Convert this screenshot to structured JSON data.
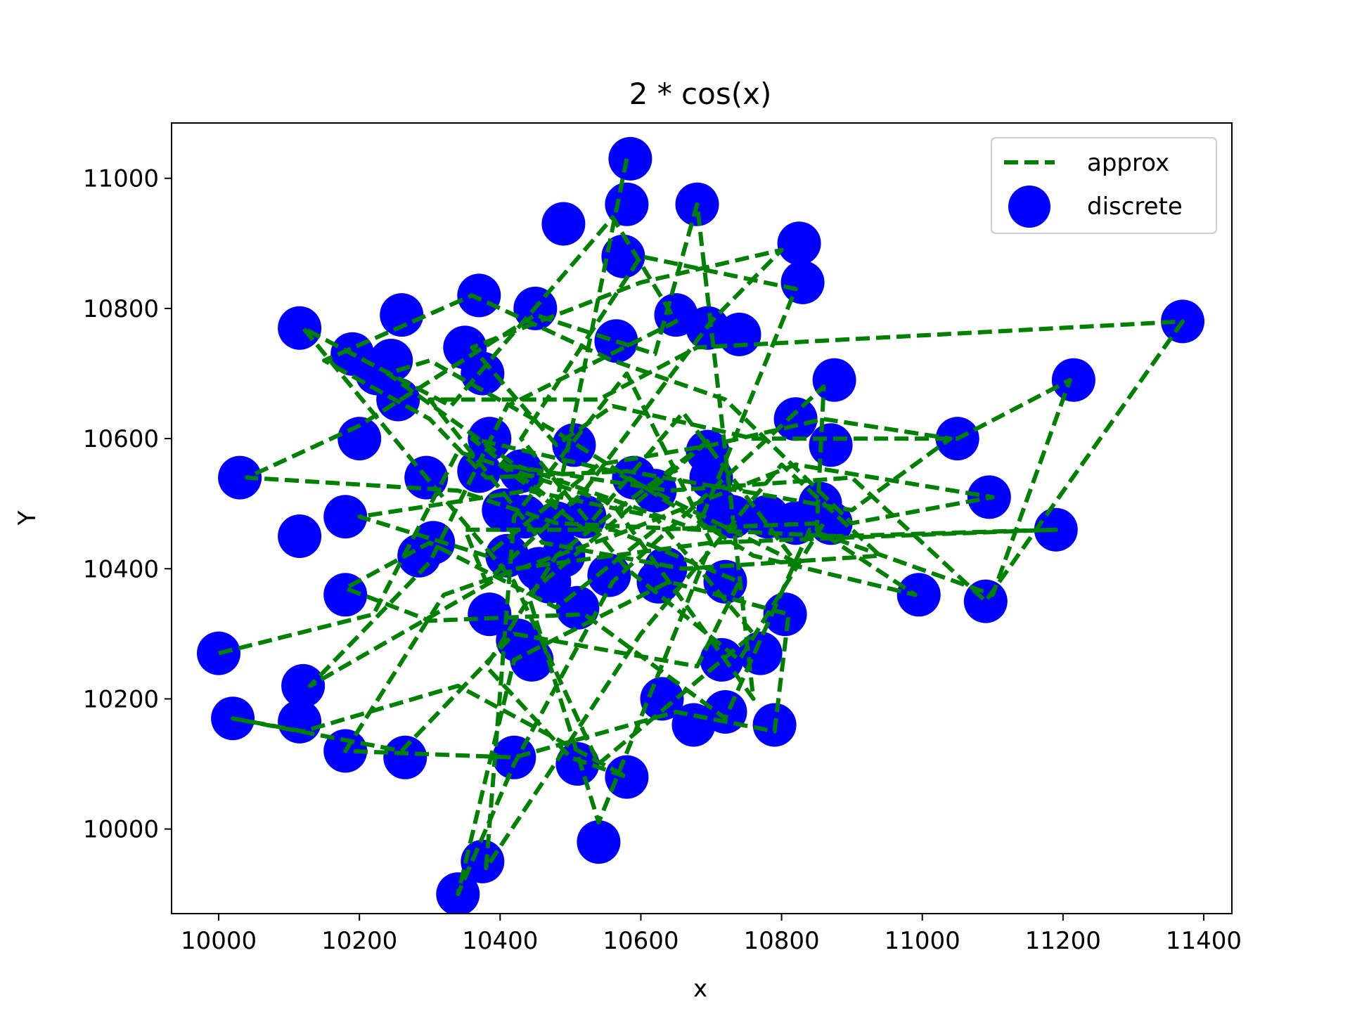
{
  "chart_data": {
    "type": "scatter",
    "title": "2 * cos(x)",
    "xlabel": "x",
    "ylabel": "Y",
    "xlim": [
      9933,
      11440
    ],
    "ylim": [
      9870,
      11085
    ],
    "xticks": [
      10000,
      10200,
      10400,
      10600,
      10800,
      11000,
      11200,
      11400
    ],
    "yticks": [
      10000,
      10200,
      10400,
      10600,
      10800,
      11000
    ],
    "grid": false,
    "legend_position": "top-right",
    "colors": {
      "approx": "#008000",
      "discrete": "#0000ff"
    },
    "series": [
      {
        "name": "approx",
        "style": "dashed-line",
        "points": [
          [
            10000,
            10270
          ],
          [
            10220,
            10330
          ],
          [
            10340,
            10580
          ],
          [
            10560,
            10500
          ],
          [
            10760,
            10200
          ],
          [
            10680,
            10960
          ],
          [
            10620,
            10730
          ],
          [
            10450,
            10790
          ],
          [
            10200,
            10620
          ],
          [
            10040,
            10540
          ],
          [
            10340,
            10520
          ],
          [
            10480,
            10470
          ],
          [
            10880,
            10450
          ],
          [
            11190,
            10460
          ],
          [
            10700,
            10440
          ],
          [
            10420,
            10400
          ],
          [
            10130,
            10220
          ],
          [
            10300,
            10410
          ],
          [
            10410,
            10650
          ],
          [
            10650,
            10780
          ],
          [
            10560,
            10940
          ],
          [
            10330,
            10650
          ],
          [
            10120,
            10770
          ],
          [
            10280,
            10560
          ],
          [
            10420,
            10380
          ],
          [
            10540,
            10100
          ],
          [
            10760,
            10300
          ],
          [
            10620,
            10480
          ],
          [
            10440,
            10520
          ],
          [
            10200,
            10480
          ],
          [
            10380,
            10420
          ],
          [
            10540,
            10560
          ],
          [
            10700,
            10590
          ],
          [
            10860,
            10630
          ],
          [
            11040,
            10600
          ],
          [
            10900,
            10490
          ],
          [
            10580,
            10550
          ],
          [
            10380,
            10540
          ],
          [
            10300,
            10630
          ],
          [
            10150,
            10720
          ],
          [
            10360,
            10820
          ],
          [
            10560,
            10720
          ],
          [
            10720,
            10660
          ],
          [
            10900,
            10470
          ],
          [
            11100,
            10510
          ],
          [
            10820,
            10560
          ],
          [
            10560,
            10450
          ],
          [
            10320,
            10360
          ],
          [
            10180,
            10120
          ],
          [
            10420,
            10110
          ],
          [
            10650,
            10180
          ],
          [
            10790,
            10150
          ],
          [
            10810,
            10330
          ],
          [
            10640,
            10380
          ],
          [
            10420,
            10260
          ],
          [
            10340,
            9900
          ],
          [
            10420,
            10100
          ],
          [
            10560,
            10380
          ],
          [
            10700,
            10520
          ],
          [
            10860,
            10680
          ],
          [
            10850,
            10460
          ],
          [
            10990,
            10360
          ],
          [
            10760,
            10420
          ],
          [
            10480,
            10610
          ],
          [
            10300,
            10720
          ],
          [
            10240,
            10700
          ],
          [
            10420,
            10560
          ],
          [
            10680,
            10460
          ],
          [
            10820,
            10830
          ],
          [
            10600,
            10880
          ],
          [
            10430,
            10600
          ],
          [
            10580,
            10400
          ],
          [
            10740,
            10260
          ],
          [
            10860,
            10470
          ],
          [
            10620,
            10460
          ],
          [
            10480,
            10340
          ],
          [
            10300,
            10440
          ],
          [
            10180,
            10370
          ],
          [
            10300,
            10320
          ],
          [
            10520,
            10330
          ],
          [
            10720,
            10170
          ],
          [
            10840,
            10460
          ],
          [
            11100,
            10360
          ],
          [
            11210,
            10690
          ],
          [
            11050,
            10600
          ],
          [
            10760,
            10600
          ],
          [
            10560,
            10650
          ],
          [
            10480,
            10590
          ],
          [
            10360,
            10740
          ],
          [
            10600,
            10840
          ],
          [
            10800,
            10890
          ],
          [
            10700,
            10780
          ],
          [
            10520,
            10520
          ],
          [
            10380,
            10380
          ],
          [
            10350,
            10460
          ],
          [
            10560,
            10460
          ],
          [
            10740,
            10380
          ],
          [
            10680,
            10250
          ],
          [
            10420,
            10300
          ],
          [
            10260,
            10120
          ],
          [
            10020,
            10170
          ],
          [
            10120,
            10150
          ],
          [
            10340,
            10220
          ],
          [
            10580,
            10080
          ],
          [
            10500,
            10110
          ],
          [
            10380,
            10250
          ],
          [
            10480,
            10420
          ],
          [
            10700,
            10600
          ],
          [
            10440,
            10360
          ],
          [
            10540,
            10010
          ],
          [
            10700,
            10440
          ],
          [
            10580,
            10700
          ],
          [
            10420,
            10480
          ],
          [
            10380,
            9940
          ],
          [
            10600,
            10300
          ],
          [
            10800,
            10560
          ],
          [
            10940,
            10420
          ],
          [
            10660,
            10400
          ],
          [
            10460,
            10440
          ],
          [
            10300,
            10660
          ],
          [
            10540,
            10660
          ],
          [
            10680,
            10740
          ],
          [
            11370,
            10780
          ],
          [
            11090,
            10350
          ],
          [
            10900,
            10540
          ],
          [
            10640,
            10520
          ],
          [
            10400,
            10560
          ],
          [
            10520,
            10460
          ],
          [
            10660,
            10640
          ],
          [
            10820,
            10410
          ],
          [
            10560,
            10550
          ],
          [
            10360,
            10600
          ],
          [
            10480,
            10500
          ],
          [
            10580,
            11030
          ]
        ]
      },
      {
        "name": "discrete",
        "style": "markers",
        "points": [
          [
            10000,
            10270
          ],
          [
            10030,
            10540
          ],
          [
            10020,
            10170
          ],
          [
            10115,
            10770
          ],
          [
            10115,
            10450
          ],
          [
            10120,
            10220
          ],
          [
            10115,
            10165
          ],
          [
            10180,
            10480
          ],
          [
            10180,
            10360
          ],
          [
            10180,
            10120
          ],
          [
            10190,
            10730
          ],
          [
            10200,
            10600
          ],
          [
            10225,
            10700
          ],
          [
            10245,
            10720
          ],
          [
            10255,
            10660
          ],
          [
            10260,
            10790
          ],
          [
            10265,
            10110
          ],
          [
            10285,
            10420
          ],
          [
            10295,
            10540
          ],
          [
            10305,
            10440
          ],
          [
            10340,
            9900
          ],
          [
            10350,
            10740
          ],
          [
            10370,
            10820
          ],
          [
            10370,
            10550
          ],
          [
            10375,
            9950
          ],
          [
            10385,
            10600
          ],
          [
            10375,
            10700
          ],
          [
            10385,
            10330
          ],
          [
            10405,
            10490
          ],
          [
            10410,
            10420
          ],
          [
            10420,
            10110
          ],
          [
            10425,
            10290
          ],
          [
            10430,
            10550
          ],
          [
            10435,
            10480
          ],
          [
            10445,
            10260
          ],
          [
            10450,
            10800
          ],
          [
            10455,
            10400
          ],
          [
            10470,
            10380
          ],
          [
            10480,
            10470
          ],
          [
            10490,
            10930
          ],
          [
            10490,
            10420
          ],
          [
            10505,
            10590
          ],
          [
            10510,
            10340
          ],
          [
            10510,
            10100
          ],
          [
            10520,
            10480
          ],
          [
            10540,
            9980
          ],
          [
            10555,
            10390
          ],
          [
            10565,
            10750
          ],
          [
            10575,
            10880
          ],
          [
            10580,
            10960
          ],
          [
            10580,
            10080
          ],
          [
            10585,
            11030
          ],
          [
            10590,
            10540
          ],
          [
            10620,
            10520
          ],
          [
            10625,
            10380
          ],
          [
            10630,
            10200
          ],
          [
            10635,
            10400
          ],
          [
            10650,
            10790
          ],
          [
            10675,
            10160
          ],
          [
            10680,
            10960
          ],
          [
            10695,
            10770
          ],
          [
            10695,
            10580
          ],
          [
            10700,
            10540
          ],
          [
            10710,
            10490
          ],
          [
            10720,
            10180
          ],
          [
            10720,
            10380
          ],
          [
            10715,
            10260
          ],
          [
            10730,
            10480
          ],
          [
            10740,
            10760
          ],
          [
            10770,
            10270
          ],
          [
            10780,
            10480
          ],
          [
            10790,
            10160
          ],
          [
            10805,
            10330
          ],
          [
            10820,
            10630
          ],
          [
            10820,
            10470
          ],
          [
            10825,
            10900
          ],
          [
            10830,
            10840
          ],
          [
            10855,
            10500
          ],
          [
            10870,
            10470
          ],
          [
            10870,
            10590
          ],
          [
            10875,
            10690
          ],
          [
            10995,
            10360
          ],
          [
            11050,
            10600
          ],
          [
            11090,
            10350
          ],
          [
            11095,
            10510
          ],
          [
            11190,
            10460
          ],
          [
            11215,
            10690
          ],
          [
            11370,
            10780
          ]
        ]
      }
    ]
  }
}
